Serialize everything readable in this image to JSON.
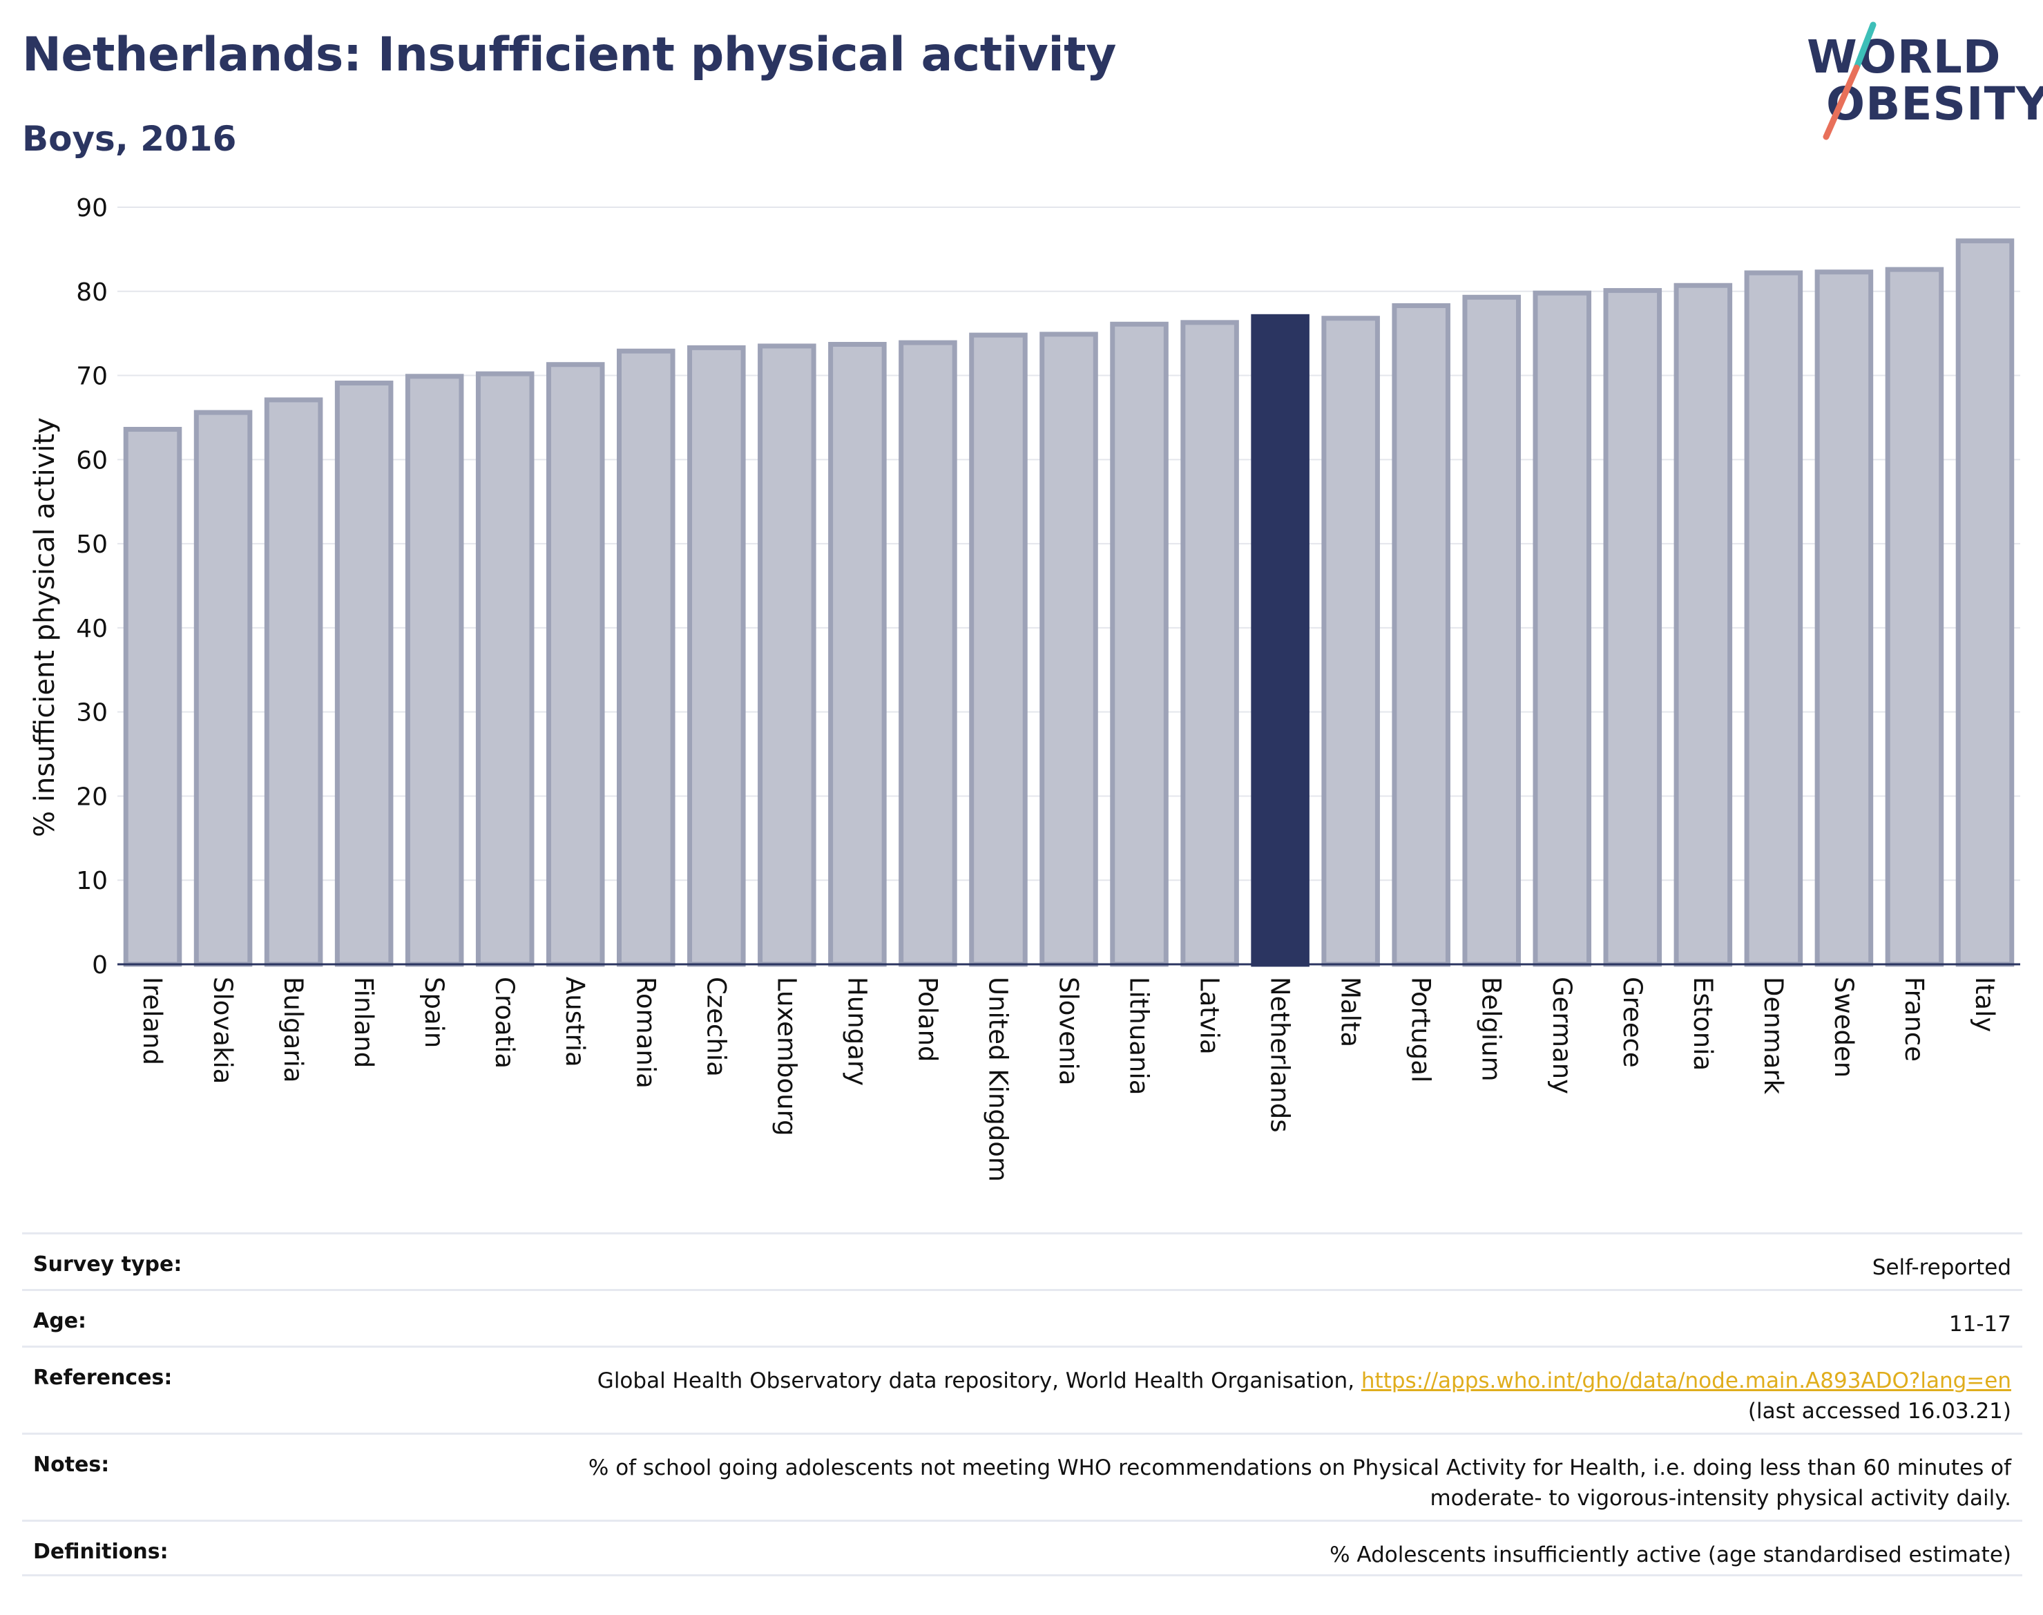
{
  "header": {
    "title": "Netherlands: Insufficient physical activity",
    "subtitle": "Boys, 2016"
  },
  "logo": {
    "line1": "WORLD",
    "line2": "OBESITY"
  },
  "colors": {
    "highlight_bar": "#2b3561",
    "other_bar_fill": "#bfc2cf",
    "other_bar_stroke": "#9da2b7",
    "text_dark": "#2b3561",
    "link": "#e0ad1c",
    "logo_slash_teal": "#3dbfb8",
    "logo_slash_coral": "#e8705a"
  },
  "chart_data": {
    "type": "bar",
    "title": "Netherlands: Insufficient physical activity",
    "subtitle": "Boys, 2016",
    "xlabel": "",
    "ylabel": "% insufficient physical activity",
    "ylim": [
      0,
      90
    ],
    "yticks": [
      0,
      10,
      20,
      30,
      40,
      50,
      60,
      70,
      80,
      90
    ],
    "grid": true,
    "highlight": "Netherlands",
    "categories": [
      "Ireland",
      "Slovakia",
      "Bulgaria",
      "Finland",
      "Spain",
      "Croatia",
      "Austria",
      "Romania",
      "Czechia",
      "Luxembourg",
      "Hungary",
      "Poland",
      "United Kingdom",
      "Slovenia",
      "Lithuania",
      "Latvia",
      "Netherlands",
      "Malta",
      "Portugal",
      "Belgium",
      "Germany",
      "Greece",
      "Estonia",
      "Denmark",
      "Sweden",
      "France",
      "Italy"
    ],
    "values": [
      63.6,
      65.6,
      67.1,
      69.1,
      69.9,
      70.2,
      71.3,
      72.9,
      73.3,
      73.5,
      73.7,
      73.9,
      74.8,
      74.9,
      76.1,
      76.3,
      77.0,
      76.8,
      78.3,
      79.3,
      79.8,
      80.1,
      80.7,
      82.2,
      82.3,
      82.6,
      86.0
    ]
  },
  "info": {
    "survey_type_label": "Survey type:",
    "survey_type_value": "Self-reported",
    "age_label": "Age:",
    "age_value": "11-17",
    "references_label": "References:",
    "references_text": "Global Health Observatory data repository, World Health Organisation, ",
    "references_link": "https://apps.who.int/gho/data/node.main.A893ADO?lang=en",
    "references_accessed": "(last accessed 16.03.21)",
    "notes_label": "Notes:",
    "notes_line1": "% of school going adolescents not meeting WHO recommendations on Physical Activity for Health, i.e. doing less than 60 minutes of",
    "notes_line2": "moderate- to vigorous-intensity physical activity daily.",
    "definitions_label": "Definitions:",
    "definitions_value": "% Adolescents insufficiently active (age standardised estimate)"
  }
}
